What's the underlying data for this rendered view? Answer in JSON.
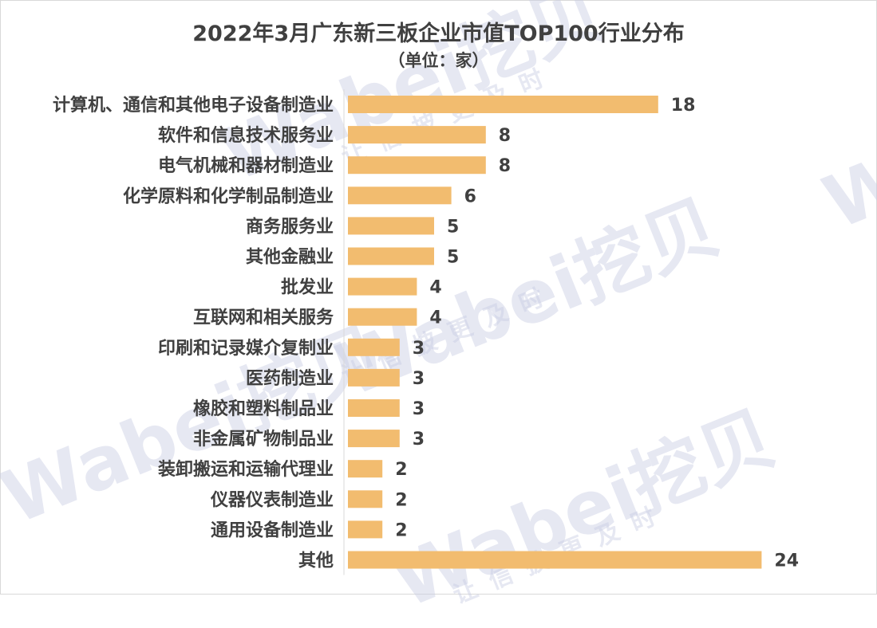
{
  "chart_data": {
    "type": "bar",
    "orientation": "horizontal",
    "title": "2022年3月广东新三板企业市值TOP100行业分布",
    "subtitle": "（单位：家）",
    "categories": [
      "计算机、通信和其他电子设备制造业",
      "软件和信息技术服务业",
      "电气机械和器材制造业",
      "化学原料和化学制品制造业",
      "商务服务业",
      "其他金融业",
      "批发业",
      "互联网和相关服务",
      "印刷和记录媒介复制业",
      "医药制造业",
      "橡胶和塑料制品业",
      "非金属矿物制品业",
      "装卸搬运和运输代理业",
      "仪器仪表制造业",
      "通用设备制造业",
      "其他"
    ],
    "values": [
      18,
      8,
      8,
      6,
      5,
      5,
      4,
      4,
      3,
      3,
      3,
      3,
      2,
      2,
      2,
      24
    ],
    "xlim": [
      0,
      24
    ],
    "grid": false,
    "legend": "none",
    "bar_color": "#f2bc6f",
    "text_color": "#404040"
  },
  "watermark": {
    "brand": "Wabei挖贝",
    "slogan": "让信披更及时"
  }
}
